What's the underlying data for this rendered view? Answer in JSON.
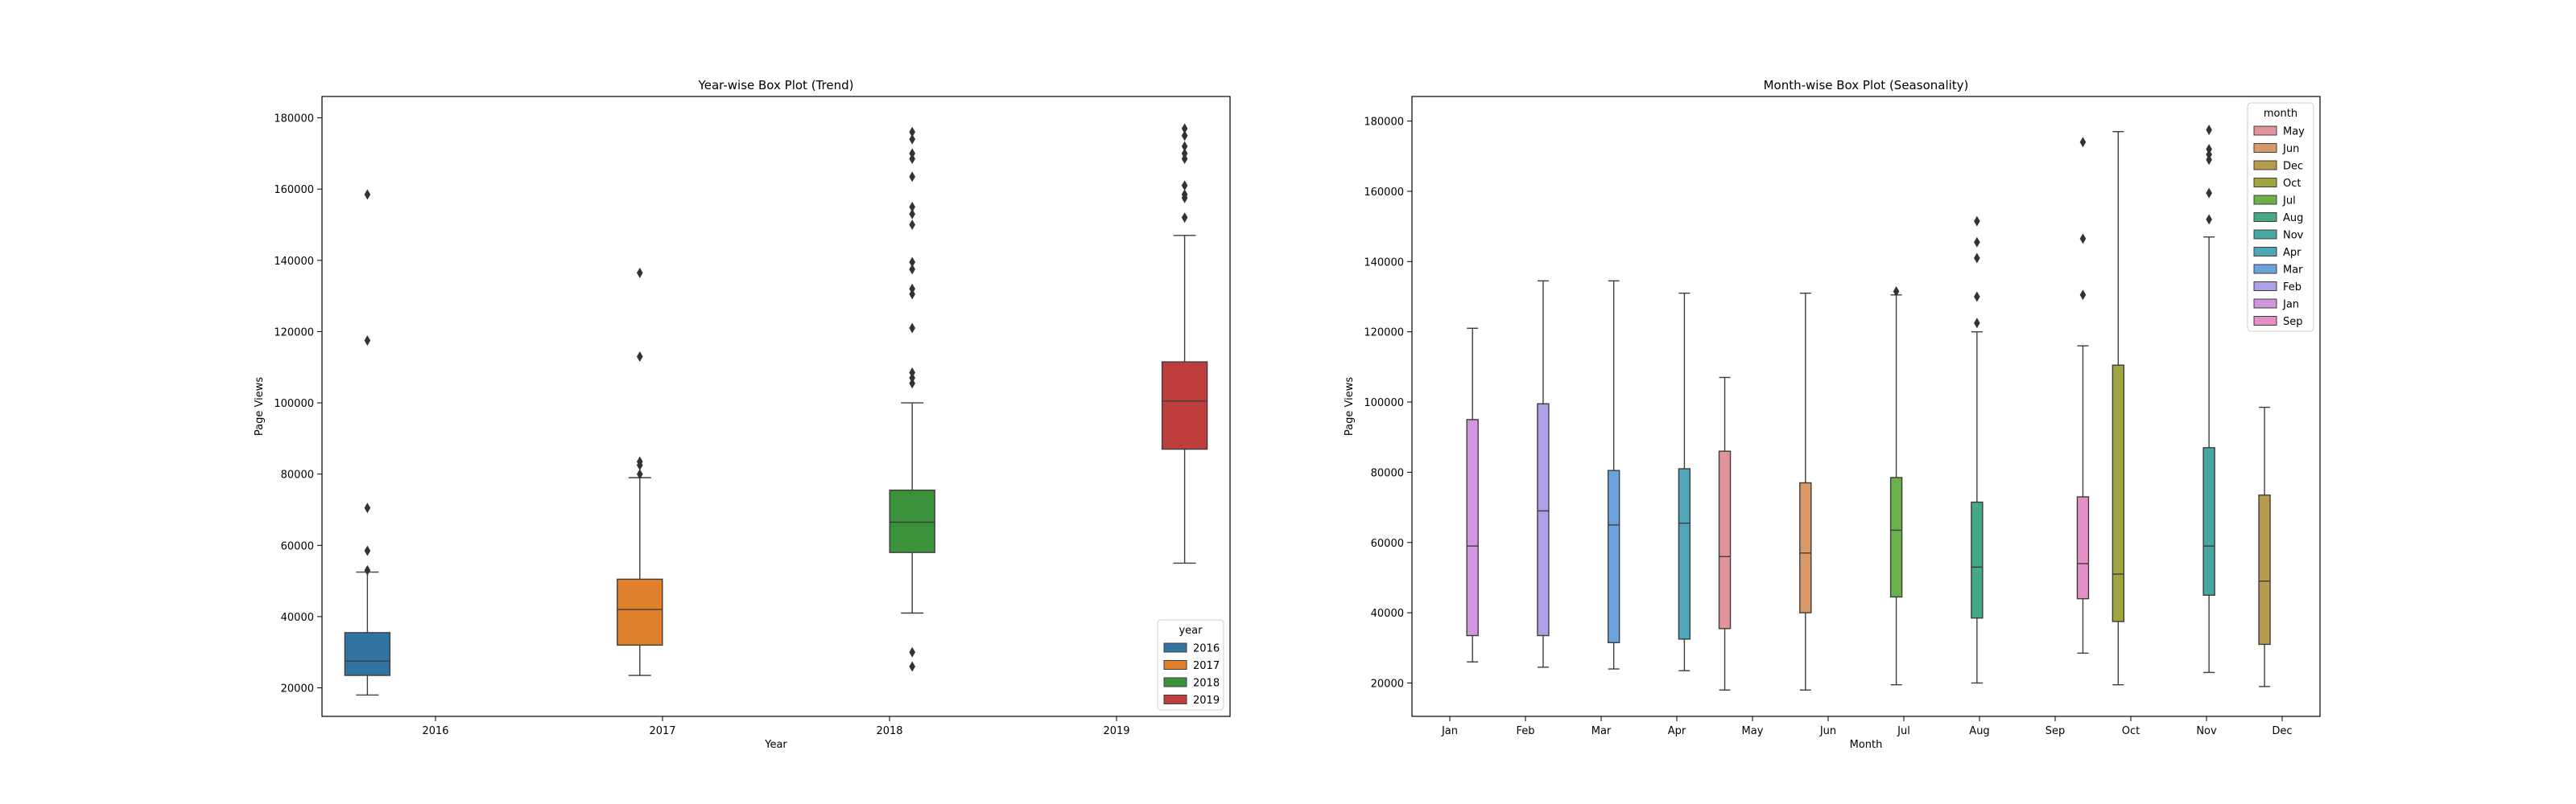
{
  "chart_data": [
    {
      "type": "box",
      "title": "Year-wise Box Plot (Trend)",
      "xlabel": "Year",
      "ylabel": "Page Views",
      "ylim": [
        12000,
        186000
      ],
      "yticks": [
        20000,
        40000,
        60000,
        80000,
        100000,
        120000,
        140000,
        160000,
        180000
      ],
      "categories": [
        "2016",
        "2017",
        "2018",
        "2019"
      ],
      "hue_order": [
        "2016",
        "2017",
        "2018",
        "2019"
      ],
      "legend": {
        "title": "year",
        "placement": "lower right",
        "entries": [
          "2016",
          "2017",
          "2018",
          "2019"
        ]
      },
      "boxes": [
        {
          "category": "2016",
          "hue": "2016",
          "color": "#3274a1",
          "whislo": 18000,
          "q1": 23500,
          "med": 27500,
          "q3": 35500,
          "whishi": 52500,
          "fliers": [
            53000,
            58500,
            70500,
            117500,
            158500
          ]
        },
        {
          "category": "2017",
          "hue": "2017",
          "color": "#e1812c",
          "whislo": 23500,
          "q1": 32000,
          "med": 42000,
          "q3": 50500,
          "whishi": 79000,
          "fliers": [
            80000,
            82500,
            83500,
            113000,
            136500
          ]
        },
        {
          "category": "2018",
          "hue": "2018",
          "color": "#3a923a",
          "whislo": 41000,
          "q1": 58000,
          "med": 66500,
          "q3": 75500,
          "whishi": 100000,
          "fliers": [
            26000,
            30000,
            105500,
            107000,
            108500,
            121000,
            130500,
            132000,
            137500,
            139500,
            150000,
            153000,
            155000,
            163500,
            168500,
            170000,
            174000,
            176000
          ]
        },
        {
          "category": "2019",
          "hue": "2019",
          "color": "#c03d3e",
          "whislo": 55000,
          "q1": 87000,
          "med": 100500,
          "q3": 111500,
          "whishi": 147000,
          "fliers": [
            152000,
            157500,
            158500,
            161000,
            168500,
            170000,
            172000,
            175000,
            177000
          ]
        }
      ]
    },
    {
      "type": "box",
      "title": "Month-wise Box Plot (Seasonality)",
      "xlabel": "Month",
      "ylabel": "Page Views",
      "ylim": [
        10500,
        187000
      ],
      "yticks": [
        20000,
        40000,
        60000,
        80000,
        100000,
        120000,
        140000,
        160000,
        180000
      ],
      "categories": [
        "Jan",
        "Feb",
        "Mar",
        "Apr",
        "May",
        "Jun",
        "Jul",
        "Aug",
        "Sep",
        "Oct",
        "Nov",
        "Dec"
      ],
      "hue_order": [
        "May",
        "Jun",
        "Dec",
        "Oct",
        "Jul",
        "Aug",
        "Nov",
        "Apr",
        "Mar",
        "Feb",
        "Jan",
        "Sep"
      ],
      "legend": {
        "title": "month",
        "placement": "upper right",
        "entries": [
          "May",
          "Jun",
          "Dec",
          "Oct",
          "Jul",
          "Aug",
          "Nov",
          "Apr",
          "Mar",
          "Feb",
          "Jan",
          "Sep"
        ],
        "colors": [
          "#e1959a",
          "#d99a68",
          "#b79a4b",
          "#a1a43f",
          "#6ab14b",
          "#46a985",
          "#47a8a3",
          "#4ea6b8",
          "#6aa4dc",
          "#ae9fe6",
          "#d296e0",
          "#e490c4"
        ]
      },
      "boxes": [
        {
          "category": "Jan",
          "hue": "Jan",
          "color": "#d296e0",
          "whislo": 26000,
          "q1": 33500,
          "med": 59000,
          "q3": 95000,
          "whishi": 121000,
          "fliers": []
        },
        {
          "category": "Feb",
          "hue": "Feb",
          "color": "#ae9fe6",
          "whislo": 24500,
          "q1": 33500,
          "med": 69000,
          "q3": 99500,
          "whishi": 134500,
          "fliers": []
        },
        {
          "category": "Mar",
          "hue": "Mar",
          "color": "#6aa4dc",
          "whislo": 24000,
          "q1": 31500,
          "med": 65000,
          "q3": 80500,
          "whishi": 134500,
          "fliers": []
        },
        {
          "category": "Apr",
          "hue": "Apr",
          "color": "#4ea6b8",
          "whislo": 23500,
          "q1": 32500,
          "med": 65500,
          "q3": 81000,
          "whishi": 131000,
          "fliers": []
        },
        {
          "category": "May",
          "hue": "May",
          "color": "#e1959a",
          "whislo": 18000,
          "q1": 35500,
          "med": 56000,
          "q3": 86000,
          "whishi": 107000,
          "fliers": []
        },
        {
          "category": "Jun",
          "hue": "Jun",
          "color": "#d99a68",
          "whislo": 18000,
          "q1": 40000,
          "med": 57000,
          "q3": 77000,
          "whishi": 131000,
          "fliers": []
        },
        {
          "category": "Jul",
          "hue": "Jul",
          "color": "#6ab14b",
          "whislo": 19500,
          "q1": 44500,
          "med": 63500,
          "q3": 78500,
          "whishi": 130500,
          "fliers": [
            131500
          ]
        },
        {
          "category": "Aug",
          "hue": "Aug",
          "color": "#46a985",
          "whislo": 20000,
          "q1": 38500,
          "med": 53000,
          "q3": 71500,
          "whishi": 120000,
          "fliers": [
            122500,
            130000,
            141000,
            145500,
            151500
          ]
        },
        {
          "category": "Sep",
          "hue": "Sep",
          "color": "#e490c4",
          "whislo": 28500,
          "q1": 44000,
          "med": 54000,
          "q3": 73000,
          "whishi": 116000,
          "fliers": [
            130500,
            146500,
            174000
          ]
        },
        {
          "category": "Oct",
          "hue": "Oct",
          "color": "#a1a43f",
          "whislo": 19500,
          "q1": 37500,
          "med": 51000,
          "q3": 110500,
          "whishi": 177000,
          "fliers": []
        },
        {
          "category": "Nov",
          "hue": "Nov",
          "color": "#47a8a3",
          "whislo": 23000,
          "q1": 45000,
          "med": 59000,
          "q3": 87000,
          "whishi": 147000,
          "fliers": [
            152000,
            159500,
            169000,
            170500,
            172000,
            177500
          ]
        },
        {
          "category": "Dec",
          "hue": "Dec",
          "color": "#b79a4b",
          "whislo": 19000,
          "q1": 31000,
          "med": 49000,
          "q3": 73500,
          "whishi": 98500,
          "fliers": []
        }
      ]
    }
  ]
}
